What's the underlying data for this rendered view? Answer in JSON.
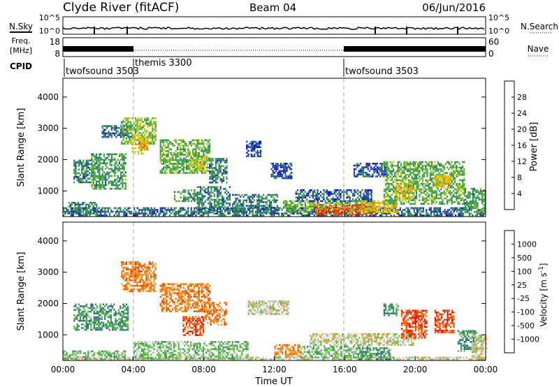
{
  "header": {
    "station": "Clyde River (fitACF)",
    "beam": "Beam 04",
    "date": "06/Jun/2016"
  },
  "noise_panel": {
    "left_label": "N.Sky",
    "left_ticks": [
      "10^5",
      "10^0"
    ],
    "right_label": "N.Search",
    "right_ticks": [
      "10^5",
      "10^0"
    ]
  },
  "freq_panel": {
    "left_label_line1": "Freq.",
    "left_label_line2": "[MHz]",
    "left_ticks": [
      "18",
      "8"
    ],
    "right_label": "Nave",
    "right_ticks": [
      "60",
      "0"
    ]
  },
  "cpid": {
    "label": "CPID",
    "segments": [
      {
        "name": "twofsound 3503",
        "start_hour": 0.0
      },
      {
        "name": "themis 3300",
        "start_hour": 4.0
      },
      {
        "name": "twofsound 3503",
        "start_hour": 16.0
      }
    ]
  },
  "colors": {
    "power": [
      "#0000ff",
      "#1f3fa0",
      "#2a8a55",
      "#46a546",
      "#a8c800",
      "#f2c20a",
      "#f08a00",
      "#e84000",
      "#ff0000"
    ],
    "velocity": [
      "#ff0000",
      "#ee4400",
      "#ff7700",
      "#e8a030",
      "#c8c8c8",
      "#60c040",
      "#3c9060",
      "#2a6a8a",
      "#2050b0",
      "#0030ff"
    ]
  },
  "chart_data": [
    {
      "type": "heatmap",
      "title": "Power",
      "xlabel": "Time UT",
      "ylabel": "Slant Range [km]",
      "colorbar_label": "Power [dB]",
      "x_ticks": [
        "00:00",
        "04:00",
        "08:00",
        "12:00",
        "16:00",
        "20:00",
        "00:00"
      ],
      "y_ticks": [
        "1000",
        "2000",
        "3000",
        "4000"
      ],
      "colorbar_ticks": [
        "4",
        "8",
        "12",
        "16",
        "20",
        "24",
        "28"
      ],
      "xlim_hours": [
        0,
        24
      ],
      "ylim_km": [
        180,
        4600
      ],
      "color_range": [
        0,
        32
      ],
      "regions": [
        {
          "t0": 0.0,
          "t1": 24.0,
          "r0": 200,
          "r1": 480,
          "val": 8
        },
        {
          "t0": 0.3,
          "t1": 1.9,
          "r0": 300,
          "r1": 650,
          "val": 10
        },
        {
          "t0": 0.6,
          "t1": 1.6,
          "r0": 1300,
          "r1": 2000,
          "val": 10
        },
        {
          "t0": 1.6,
          "t1": 3.6,
          "r0": 1050,
          "r1": 2200,
          "val": 12
        },
        {
          "t0": 2.2,
          "t1": 3.9,
          "r0": 2700,
          "r1": 3100,
          "val": 8
        },
        {
          "t0": 3.3,
          "t1": 5.3,
          "r0": 2500,
          "r1": 3350,
          "val": 16
        },
        {
          "t0": 3.9,
          "t1": 4.8,
          "r0": 2200,
          "r1": 2800,
          "val": 20
        },
        {
          "t0": 4.3,
          "t1": 4.8,
          "r0": 2350,
          "r1": 2650,
          "val": 26
        },
        {
          "t0": 5.5,
          "t1": 8.3,
          "r0": 1600,
          "r1": 2650,
          "val": 14
        },
        {
          "t0": 7.2,
          "t1": 8.2,
          "r0": 1600,
          "r1": 2100,
          "val": 20
        },
        {
          "t0": 8.3,
          "t1": 9.3,
          "r0": 1250,
          "r1": 2050,
          "val": 10
        },
        {
          "t0": 6.3,
          "t1": 7.6,
          "r0": 700,
          "r1": 1050,
          "val": 12
        },
        {
          "t0": 7.6,
          "t1": 9.5,
          "r0": 300,
          "r1": 1150,
          "val": 10
        },
        {
          "t0": 9.6,
          "t1": 12.2,
          "r0": 300,
          "r1": 900,
          "val": 9
        },
        {
          "t0": 10.4,
          "t1": 11.2,
          "r0": 2100,
          "r1": 2600,
          "val": 6
        },
        {
          "t0": 11.8,
          "t1": 13.0,
          "r0": 1400,
          "r1": 1900,
          "val": 6
        },
        {
          "t0": 12.5,
          "t1": 17.7,
          "r0": 300,
          "r1": 700,
          "val": 14
        },
        {
          "t0": 13.2,
          "t1": 17.5,
          "r0": 700,
          "r1": 1050,
          "val": 7
        },
        {
          "t0": 14.3,
          "t1": 17.6,
          "r0": 230,
          "r1": 560,
          "val": 29
        },
        {
          "t0": 16.8,
          "t1": 19.0,
          "r0": 300,
          "r1": 700,
          "val": 22
        },
        {
          "t0": 16.5,
          "t1": 18.4,
          "r0": 1450,
          "r1": 1900,
          "val": 7
        },
        {
          "t0": 18.2,
          "t1": 22.8,
          "r0": 600,
          "r1": 1950,
          "val": 14
        },
        {
          "t0": 18.9,
          "t1": 19.8,
          "r0": 750,
          "r1": 1300,
          "val": 22
        },
        {
          "t0": 21.1,
          "t1": 22.0,
          "r0": 1100,
          "r1": 1500,
          "val": 22
        },
        {
          "t0": 22.8,
          "t1": 24.0,
          "r0": 300,
          "r1": 1100,
          "val": 12
        }
      ]
    },
    {
      "type": "heatmap",
      "title": "Velocity",
      "xlabel": "Time UT",
      "ylabel": "Slant Range [km]",
      "colorbar_label": "Velocity [m s^-1]",
      "x_ticks": [
        "00:00",
        "04:00",
        "08:00",
        "12:00",
        "16:00",
        "20:00",
        "00:00"
      ],
      "y_ticks": [
        "1000",
        "2000",
        "3000",
        "4000"
      ],
      "colorbar_ticks": [
        "1000",
        "500",
        "100",
        "25",
        "-25",
        "-100",
        "-500",
        "-1000"
      ],
      "xlim_hours": [
        0,
        24
      ],
      "ylim_km": [
        180,
        4600
      ],
      "regions": [
        {
          "t0": 0.0,
          "t1": 24.0,
          "r0": 200,
          "r1": 300,
          "val": 4
        },
        {
          "t0": 0.0,
          "t1": 3.5,
          "r0": 250,
          "r1": 500,
          "val": 5
        },
        {
          "t0": 0.6,
          "t1": 3.7,
          "r0": 1150,
          "r1": 2000,
          "val": 6
        },
        {
          "t0": 3.3,
          "t1": 5.3,
          "r0": 2400,
          "r1": 3350,
          "val": 2
        },
        {
          "t0": 5.5,
          "t1": 8.3,
          "r0": 1750,
          "r1": 2650,
          "val": 2
        },
        {
          "t0": 6.8,
          "t1": 8.0,
          "r0": 1000,
          "r1": 1600,
          "val": 1
        },
        {
          "t0": 8.0,
          "t1": 9.3,
          "r0": 1300,
          "r1": 2050,
          "val": 2
        },
        {
          "t0": 4.0,
          "t1": 10.5,
          "r0": 250,
          "r1": 800,
          "val": 5
        },
        {
          "t0": 10.5,
          "t1": 12.8,
          "r0": 1650,
          "r1": 2100,
          "val": 4
        },
        {
          "t0": 12.0,
          "t1": 13.5,
          "r0": 300,
          "r1": 700,
          "val": 2
        },
        {
          "t0": 13.5,
          "t1": 17.5,
          "r0": 300,
          "r1": 650,
          "val": 5
        },
        {
          "t0": 14.0,
          "t1": 20.0,
          "r0": 650,
          "r1": 1050,
          "val": 4
        },
        {
          "t0": 16.8,
          "t1": 18.6,
          "r0": 250,
          "r1": 600,
          "val": 6
        },
        {
          "t0": 18.2,
          "t1": 19.0,
          "r0": 1600,
          "r1": 2000,
          "val": 6
        },
        {
          "t0": 19.2,
          "t1": 20.6,
          "r0": 900,
          "r1": 1800,
          "val": 1
        },
        {
          "t0": 21.1,
          "t1": 22.2,
          "r0": 1100,
          "r1": 1800,
          "val": 1
        },
        {
          "t0": 22.4,
          "t1": 23.5,
          "r0": 500,
          "r1": 1150,
          "val": 6
        },
        {
          "t0": 23.2,
          "t1": 24.0,
          "r0": 250,
          "r1": 1000,
          "val": 4
        }
      ]
    }
  ]
}
